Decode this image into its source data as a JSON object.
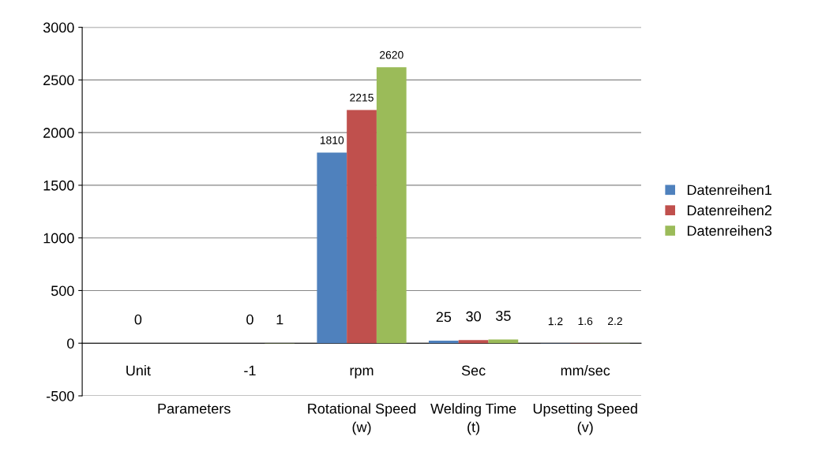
{
  "chart_data": {
    "type": "bar",
    "categories": [
      "Unit",
      "-1",
      "rpm",
      "Sec",
      "mm/sec"
    ],
    "series": [
      {
        "name": "Datenreihen1",
        "color": "#4f81bd",
        "values": [
          null,
          null,
          1810,
          25,
          1.2
        ],
        "value_labels": [
          null,
          null,
          "1810",
          "25",
          "1.2"
        ]
      },
      {
        "name": "Datenreihen2",
        "color": "#c0504d",
        "values": [
          0,
          0,
          2215,
          30,
          1.6
        ],
        "value_labels": [
          "0",
          "0",
          "2215",
          "30",
          "1.6"
        ]
      },
      {
        "name": "Datenreihen3",
        "color": "#9bbb59",
        "values": [
          null,
          1,
          2620,
          35,
          2.2
        ],
        "value_labels": [
          null,
          "1",
          "2620",
          "35",
          "2.2"
        ]
      }
    ],
    "annotations": [
      "Parameters",
      "Rotational Speed (w)",
      "Welding Time (t)",
      "Upsetting Speed (v)"
    ],
    "ylim": [
      -500,
      3000
    ],
    "yticks": [
      -500,
      0,
      500,
      1000,
      1500,
      2000,
      2500,
      3000
    ],
    "grid": "y",
    "legend": "right"
  }
}
